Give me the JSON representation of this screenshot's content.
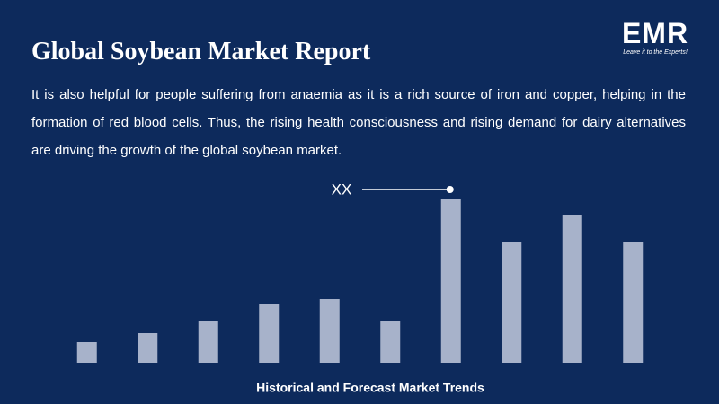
{
  "header": {
    "title": "Global Soybean Market Report",
    "logo": "EMR",
    "logo_tagline": "Leave it to the Experts!"
  },
  "body": "It is also helpful for people suffering from anaemia as it is a rich source of iron and copper, helping in the formation of red blood cells. Thus, the rising health consciousness and rising demand for dairy alternatives are driving the growth of the global soybean market.",
  "chart_data": {
    "type": "bar",
    "title": "Historical and Forecast Market Trends",
    "categories": [
      null,
      null,
      null,
      null,
      null,
      null,
      null,
      null,
      null,
      null
    ],
    "values": [
      23,
      33,
      47,
      65,
      71,
      47,
      182,
      135,
      165,
      135
    ],
    "color": "#a7b2ca",
    "annotation": {
      "text": "XX",
      "index": 6
    }
  }
}
